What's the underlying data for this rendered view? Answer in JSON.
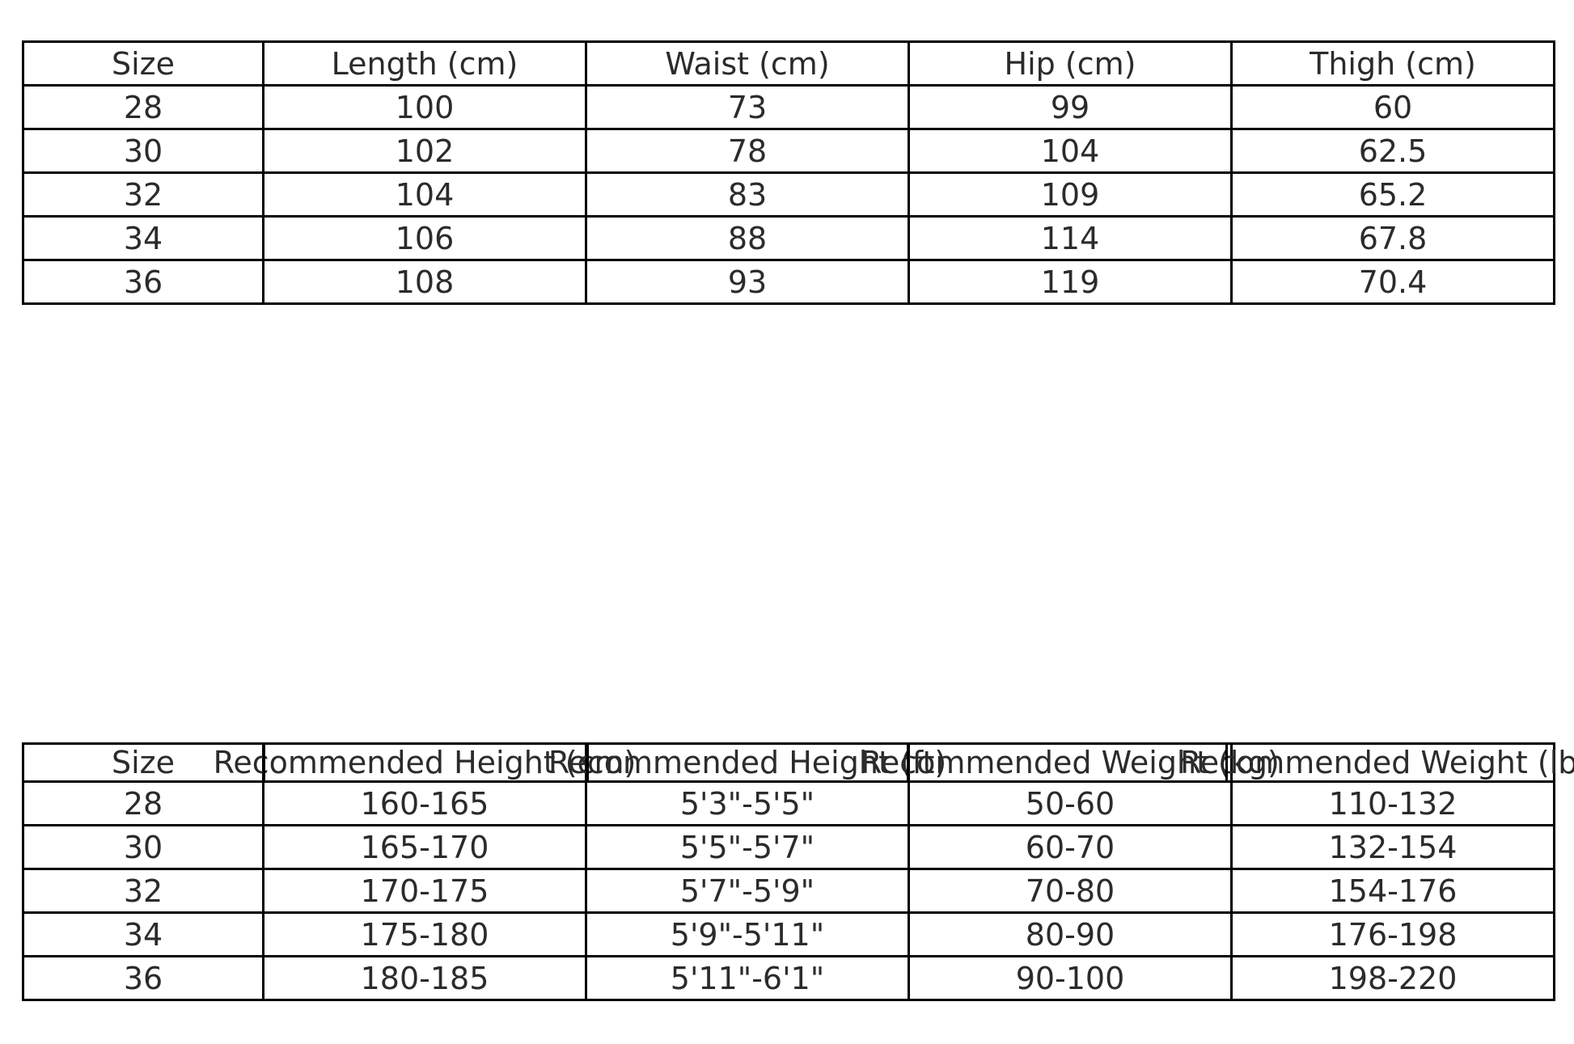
{
  "colors": {
    "background": "#ffffff",
    "border": "#000000",
    "text": "#2b2b2b"
  },
  "chart_data": [
    {
      "type": "table",
      "name": "garment-measurements",
      "columns": [
        "Size",
        "Length (cm)",
        "Waist (cm)",
        "Hip (cm)",
        "Thigh (cm)"
      ],
      "rows": [
        [
          "28",
          "100",
          "73",
          "99",
          "60"
        ],
        [
          "30",
          "102",
          "78",
          "104",
          "62.5"
        ],
        [
          "32",
          "104",
          "83",
          "109",
          "65.2"
        ],
        [
          "34",
          "106",
          "88",
          "114",
          "67.8"
        ],
        [
          "36",
          "108",
          "93",
          "119",
          "70.4"
        ]
      ],
      "layout": {
        "header_overflow": false,
        "grid": true
      }
    },
    {
      "type": "table",
      "name": "size-recommendations",
      "columns": [
        "Size",
        "Recommended Height (cm)",
        "Recommended Height (ft)",
        "Recommended Weight (kg)",
        "Recommended Weight (lbs)"
      ],
      "rows": [
        [
          "28",
          "160-165",
          "5'3\"-5'5\"",
          "50-60",
          "110-132"
        ],
        [
          "30",
          "165-170",
          "5'5\"-5'7\"",
          "60-70",
          "132-154"
        ],
        [
          "32",
          "170-175",
          "5'7\"-5'9\"",
          "70-80",
          "154-176"
        ],
        [
          "34",
          "175-180",
          "5'9\"-5'11\"",
          "80-90",
          "176-198"
        ],
        [
          "36",
          "180-185",
          "5'11\"-6'1\"",
          "90-100",
          "198-220"
        ]
      ],
      "layout": {
        "header_overflow": true,
        "grid": true
      }
    }
  ]
}
